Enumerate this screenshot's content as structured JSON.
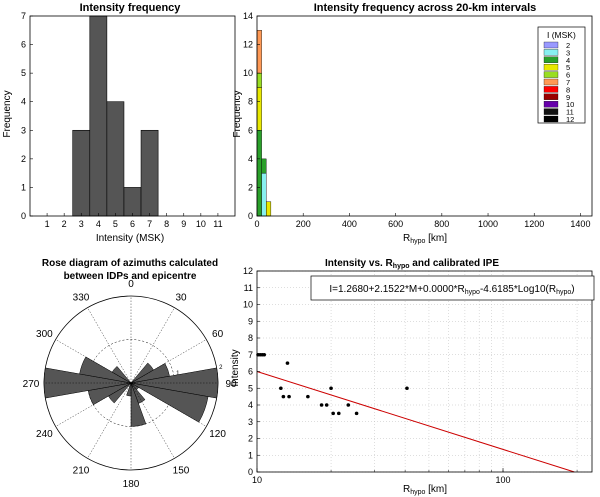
{
  "colors": {
    "bar": "#555555",
    "line": "#cc0000",
    "grid": "#bdbdbd",
    "intensity_palette": [
      "#9999ff",
      "#88f0f0",
      "#2aa02a",
      "#e8e800",
      "#99dd22",
      "#ff9955",
      "#ff0000",
      "#990000",
      "#6600aa",
      "#111111",
      "#000000"
    ]
  },
  "chart_data": [
    {
      "id": "hist",
      "type": "bar",
      "title": "Intensity frequency",
      "xlabel": "Intensity (MSK)",
      "ylabel": "Frequency",
      "categories": [
        "1",
        "2",
        "3",
        "4",
        "5",
        "6",
        "7",
        "8",
        "9",
        "10",
        "11"
      ],
      "values": [
        0,
        0,
        3,
        7,
        4,
        1,
        3,
        0,
        0,
        0,
        0
      ],
      "xlim": [
        0,
        12
      ],
      "ylim": [
        0,
        7
      ],
      "yticks": [
        "0",
        "1",
        "2",
        "3",
        "4",
        "5",
        "6",
        "7"
      ],
      "grid": false
    },
    {
      "id": "stack",
      "type": "bar",
      "title": "Intensity frequency across 20-km intervals",
      "xlabel_main": "R",
      "xlabel_sub": "hypo",
      "xlabel_unit": " [km]",
      "ylabel": "Frequency",
      "xlim": [
        0,
        1450
      ],
      "ylim": [
        0,
        14
      ],
      "xticks": [
        "0",
        "200",
        "400",
        "600",
        "800",
        "1000",
        "1200",
        "1400"
      ],
      "yticks": [
        "0",
        "2",
        "4",
        "6",
        "8",
        "10",
        "12",
        "14"
      ],
      "legend_title": "I (MSK)",
      "legend_labels": [
        "2",
        "3",
        "4",
        "5",
        "6",
        "7",
        "8",
        "9",
        "10",
        "11",
        "12"
      ],
      "legend_position": "top-right",
      "bin_width_km": 20,
      "bins": [
        {
          "x0": 0,
          "segments": [
            {
              "intensity": 4,
              "count": 6
            },
            {
              "intensity": 5,
              "count": 3
            },
            {
              "intensity": 6,
              "count": 1
            },
            {
              "intensity": 7,
              "count": 3
            }
          ]
        },
        {
          "x0": 20,
          "segments": [
            {
              "intensity": 3,
              "count": 3
            },
            {
              "intensity": 4,
              "count": 1
            }
          ]
        },
        {
          "x0": 40,
          "segments": [
            {
              "intensity": 5,
              "count": 1
            }
          ]
        }
      ],
      "grid": false
    },
    {
      "id": "rose",
      "type": "rose",
      "title_line1": "Rose diagram of azimuths calculated",
      "title_line2": "between  IDPs and epicentre",
      "angle_labels": [
        "0",
        "30",
        "60",
        "90",
        "120",
        "150",
        "180",
        "210",
        "240",
        "270",
        "300",
        "330"
      ],
      "radial_labels": [
        "1",
        "2"
      ],
      "rmax": 2,
      "sector_deg": 20,
      "sectors": [
        {
          "start": 0,
          "count": 0
        },
        {
          "start": 20,
          "count": 0
        },
        {
          "start": 40,
          "count": 0.6
        },
        {
          "start": 60,
          "count": 0.9
        },
        {
          "start": 80,
          "count": 2
        },
        {
          "start": 100,
          "count": 1.8
        },
        {
          "start": 120,
          "count": 0.2
        },
        {
          "start": 140,
          "count": 0.5
        },
        {
          "start": 160,
          "count": 1
        },
        {
          "start": 180,
          "count": 0.3
        },
        {
          "start": 200,
          "count": 0
        },
        {
          "start": 220,
          "count": 0.6
        },
        {
          "start": 240,
          "count": 1
        },
        {
          "start": 260,
          "count": 2
        },
        {
          "start": 280,
          "count": 1.2
        },
        {
          "start": 300,
          "count": 0.5
        },
        {
          "start": 320,
          "count": 0
        },
        {
          "start": 340,
          "count": 0
        }
      ]
    },
    {
      "id": "ipe",
      "type": "scatter",
      "title_pre": "Intensity vs. R",
      "title_sub": "hypo",
      "title_post": " and calibrated IPE",
      "xlabel_main": "R",
      "xlabel_sub": "hypo",
      "xlabel_unit": " [km]",
      "ylabel": "Intensity",
      "xscale": "log",
      "xlim": [
        10,
        230
      ],
      "ylim": [
        0,
        12
      ],
      "xticks": [
        {
          "value": 10,
          "label": "10"
        },
        {
          "value": 100,
          "label": "100"
        }
      ],
      "yticks": [
        "0",
        "1",
        "2",
        "3",
        "4",
        "5",
        "6",
        "7",
        "8",
        "9",
        "10",
        "11",
        "12"
      ],
      "grid": true,
      "equation": [
        "I=1.2680+2.1522*M+0.0000*R",
        "hypo",
        "-4.6185*Log10(R",
        "hypo",
        ")"
      ],
      "points": [
        {
          "x": 10.1,
          "y": 7
        },
        {
          "x": 10.3,
          "y": 7
        },
        {
          "x": 10.5,
          "y": 7
        },
        {
          "x": 10.7,
          "y": 7
        },
        {
          "x": 12.5,
          "y": 5
        },
        {
          "x": 12.8,
          "y": 4.5
        },
        {
          "x": 13.3,
          "y": 6.5
        },
        {
          "x": 13.5,
          "y": 4.5
        },
        {
          "x": 16.1,
          "y": 4.5
        },
        {
          "x": 18.3,
          "y": 4
        },
        {
          "x": 19.2,
          "y": 4
        },
        {
          "x": 20,
          "y": 5
        },
        {
          "x": 20.4,
          "y": 3.5
        },
        {
          "x": 21.5,
          "y": 3.5
        },
        {
          "x": 23.5,
          "y": 4
        },
        {
          "x": 25.4,
          "y": 3.5
        },
        {
          "x": 40.7,
          "y": 5
        }
      ],
      "fit_line": [
        {
          "x": 10,
          "y": 6
        },
        {
          "x": 195,
          "y": 0
        }
      ]
    }
  ]
}
